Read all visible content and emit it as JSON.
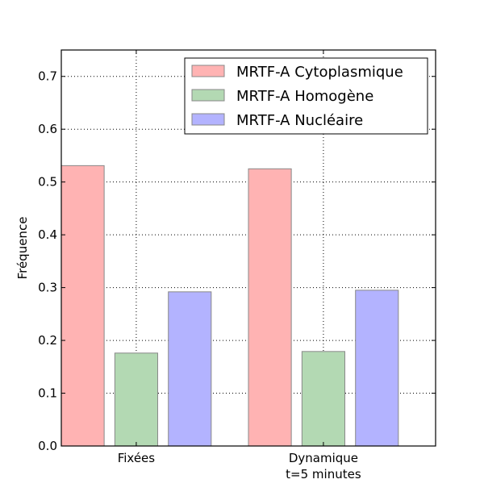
{
  "chart_data": {
    "type": "bar",
    "ylabel": "Fréquence",
    "xlabel": "",
    "title": "",
    "ylim": [
      0,
      0.75
    ],
    "yticks": [
      "0.0",
      "0.1",
      "0.2",
      "0.3",
      "0.4",
      "0.5",
      "0.6",
      "0.7"
    ],
    "grid": true,
    "legend_position": "top-right",
    "categories": [
      {
        "lines": [
          "Fixées"
        ]
      },
      {
        "lines": [
          "Dynamique",
          "t=5 minutes"
        ]
      }
    ],
    "series": [
      {
        "name": "MRTF-A Cytoplasmique",
        "color": "#ffb3b3",
        "values": [
          0.531,
          0.525
        ]
      },
      {
        "name": "MRTF-A Homogène",
        "color": "#b3d9b3",
        "values": [
          0.176,
          0.179
        ]
      },
      {
        "name": "MRTF-A Nucléaire",
        "color": "#b3b3ff",
        "values": [
          0.292,
          0.295
        ]
      }
    ]
  }
}
